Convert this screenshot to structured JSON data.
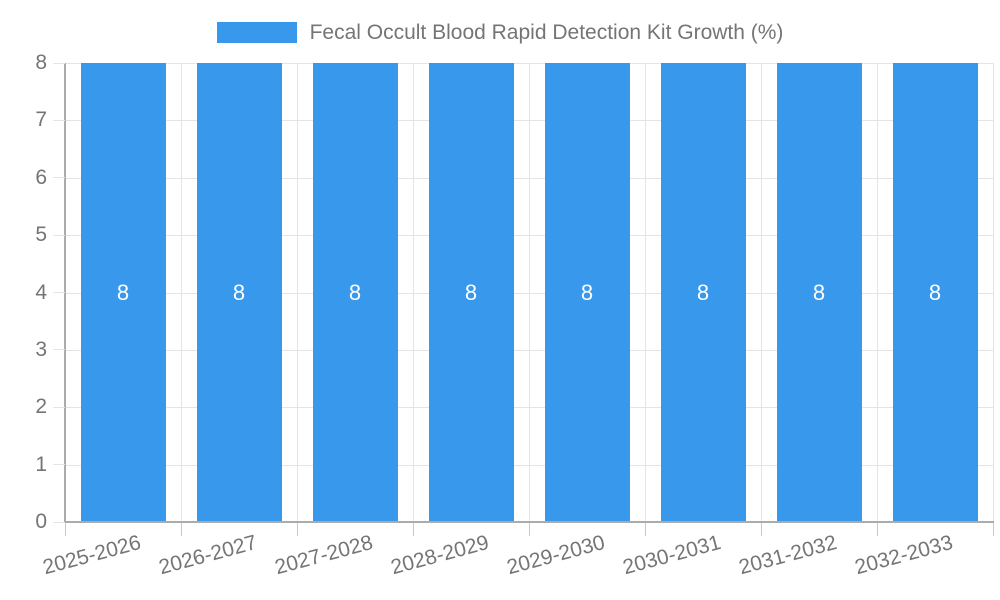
{
  "chart_data": {
    "type": "bar",
    "title": "Fecal Occult Blood Rapid Detection Kit Growth (%)",
    "legend_label": "Fecal Occult Blood Rapid Detection Kit Growth (%)",
    "legend_position": "top-center",
    "categories": [
      "2025-2026",
      "2026-2027",
      "2027-2028",
      "2028-2029",
      "2029-2030",
      "2030-2031",
      "2031-2032",
      "2032-2033"
    ],
    "series": [
      {
        "name": "Fecal Occult Blood Rapid Detection Kit Growth (%)",
        "values": [
          8,
          8,
          8,
          8,
          8,
          8,
          8,
          8
        ]
      }
    ],
    "data_labels": [
      "8",
      "8",
      "8",
      "8",
      "8",
      "8",
      "8",
      "8"
    ],
    "xlabel": "",
    "ylabel": "",
    "ylim": [
      0,
      8
    ],
    "yticks": [
      0,
      1,
      2,
      3,
      4,
      5,
      6,
      7,
      8
    ],
    "grid": true,
    "x_tick_rotation_deg": -15
  },
  "colors": {
    "bar": "#3899EC",
    "bar_label": "#FFFFFF",
    "axis_text": "#757575",
    "gridline": "#E4E4E4",
    "tick_mark": "#C9C9C9",
    "axis_border": "#ABABAB",
    "background": "#FFFFFF"
  }
}
